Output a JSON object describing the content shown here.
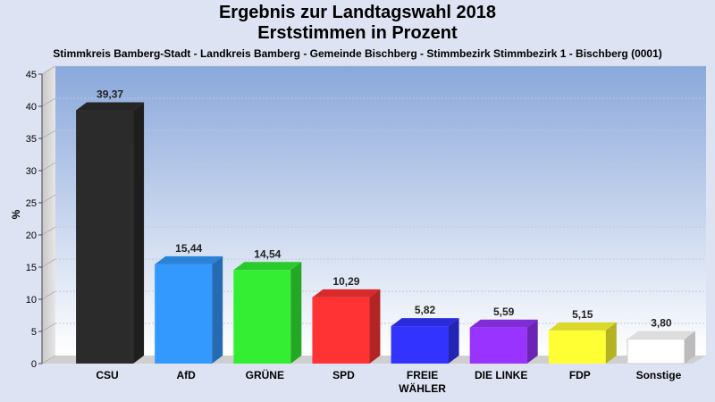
{
  "chart_data": {
    "type": "bar",
    "title": "Ergebnis zur Landtagswahl 2018",
    "subtitle": "Erststimmen in Prozent",
    "caption": "Stimmkreis Bamberg-Stadt - Landkreis Bamberg - Gemeinde Bischberg - Stimmbezirk Stimmbezirk 1 - Bischberg (0001)",
    "ylabel": "%",
    "ylim": [
      0,
      45
    ],
    "yticks": [
      0,
      5,
      10,
      15,
      20,
      25,
      30,
      35,
      40,
      45
    ],
    "grid": true,
    "categories": [
      "CSU",
      "AfD",
      "GRÜNE",
      "SPD",
      "FREIE WÄHLER",
      "DIE LINKE",
      "FDP",
      "Sonstige"
    ],
    "category_lines": [
      [
        "CSU"
      ],
      [
        "AfD"
      ],
      [
        "GRÜNE"
      ],
      [
        "SPD"
      ],
      [
        "FREIE",
        "WÄHLER"
      ],
      [
        "DIE LINKE"
      ],
      [
        "FDP"
      ],
      [
        "Sonstige"
      ]
    ],
    "values": [
      39.37,
      15.44,
      14.54,
      10.29,
      5.82,
      5.59,
      5.15,
      3.8
    ],
    "value_labels": [
      "39,37",
      "15,44",
      "14,54",
      "10,29",
      "5,82",
      "5,59",
      "5,15",
      "3,80"
    ],
    "colors": [
      "#2b2b2b",
      "#3399ff",
      "#33ee33",
      "#ff3333",
      "#3333ff",
      "#9933ff",
      "#ffff33",
      "#ffffff"
    ]
  }
}
